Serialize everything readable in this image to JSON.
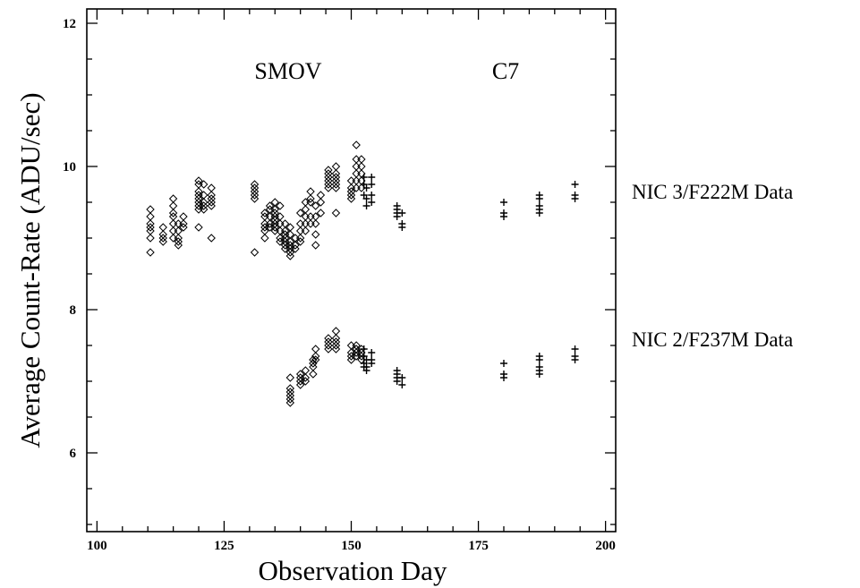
{
  "chart_data": {
    "type": "scatter",
    "xlabel": "Observation Day",
    "ylabel": "Average Count-Rate (ADU/sec)",
    "xlim": [
      98,
      202
    ],
    "ylim": [
      4.9,
      12.2
    ],
    "x_ticks": [
      100,
      125,
      150,
      175,
      200
    ],
    "y_ticks": [
      6,
      8,
      10,
      12
    ],
    "annotations": [
      "SMOV",
      "C7"
    ],
    "series": [
      {
        "name": "NIC 3/F222M Data",
        "groups": [
          {
            "marker": "diamond",
            "points": [
              [
                110.5,
                9.4
              ],
              [
                110.5,
                9.3
              ],
              [
                110.5,
                9.2
              ],
              [
                110.5,
                9.15
              ],
              [
                110.5,
                9.1
              ],
              [
                110.5,
                9.0
              ],
              [
                110.5,
                8.8
              ],
              [
                113,
                9.15
              ],
              [
                113,
                9.05
              ],
              [
                113,
                9.0
              ],
              [
                113,
                8.95
              ],
              [
                115,
                9.55
              ],
              [
                115,
                9.45
              ],
              [
                115,
                9.35
              ],
              [
                115,
                9.3
              ],
              [
                115,
                9.2
              ],
              [
                115,
                9.1
              ],
              [
                115,
                9.0
              ],
              [
                116,
                9.2
              ],
              [
                116,
                9.1
              ],
              [
                116,
                9.0
              ],
              [
                116,
                8.95
              ],
              [
                116,
                8.9
              ],
              [
                117,
                9.3
              ],
              [
                117,
                9.2
              ],
              [
                117,
                9.15
              ],
              [
                120,
                9.8
              ],
              [
                120,
                9.75
              ],
              [
                120,
                9.65
              ],
              [
                120,
                9.6
              ],
              [
                120,
                9.55
              ],
              [
                120,
                9.5
              ],
              [
                120,
                9.45
              ],
              [
                120,
                9.4
              ],
              [
                120,
                9.15
              ],
              [
                121,
                9.75
              ],
              [
                121,
                9.6
              ],
              [
                121,
                9.5
              ],
              [
                121,
                9.45
              ],
              [
                121,
                9.4
              ],
              [
                122.5,
                9.7
              ],
              [
                122.5,
                9.6
              ],
              [
                122.5,
                9.55
              ],
              [
                122.5,
                9.5
              ],
              [
                122.5,
                9.45
              ],
              [
                122.5,
                9.0
              ],
              [
                131,
                9.75
              ],
              [
                131,
                9.7
              ],
              [
                131,
                9.65
              ],
              [
                131,
                9.6
              ],
              [
                131,
                9.55
              ],
              [
                131,
                8.8
              ],
              [
                133,
                9.35
              ],
              [
                133,
                9.3
              ],
              [
                133,
                9.2
              ],
              [
                133,
                9.15
              ],
              [
                133,
                9.1
              ],
              [
                133,
                9.0
              ],
              [
                134,
                9.45
              ],
              [
                134,
                9.4
              ],
              [
                134,
                9.3
              ],
              [
                134,
                9.2
              ],
              [
                134,
                9.15
              ],
              [
                135,
                9.5
              ],
              [
                135,
                9.4
              ],
              [
                135,
                9.35
              ],
              [
                135,
                9.3
              ],
              [
                135,
                9.25
              ],
              [
                135,
                9.2
              ],
              [
                135,
                9.15
              ],
              [
                135,
                9.1
              ],
              [
                136,
                9.45
              ],
              [
                136,
                9.3
              ],
              [
                136,
                9.2
              ],
              [
                136,
                9.1
              ],
              [
                136,
                9.0
              ],
              [
                136,
                8.95
              ],
              [
                137,
                9.2
              ],
              [
                137,
                9.1
              ],
              [
                137,
                9.05
              ],
              [
                137,
                9.0
              ],
              [
                137,
                8.95
              ],
              [
                137,
                8.9
              ],
              [
                137,
                8.85
              ],
              [
                138,
                9.15
              ],
              [
                138,
                9.05
              ],
              [
                138,
                8.95
              ],
              [
                138,
                8.9
              ],
              [
                138,
                8.85
              ],
              [
                138,
                8.8
              ],
              [
                138,
                8.75
              ],
              [
                139,
                9.0
              ],
              [
                139,
                8.9
              ],
              [
                139,
                8.85
              ],
              [
                140,
                9.35
              ],
              [
                140,
                9.2
              ],
              [
                140,
                9.1
              ],
              [
                140,
                9.0
              ],
              [
                140,
                8.95
              ],
              [
                141,
                9.5
              ],
              [
                141,
                9.4
              ],
              [
                141,
                9.3
              ],
              [
                141,
                9.2
              ],
              [
                141,
                9.1
              ],
              [
                142,
                9.65
              ],
              [
                142,
                9.55
              ],
              [
                142,
                9.5
              ],
              [
                142,
                9.3
              ],
              [
                142,
                9.2
              ],
              [
                143,
                9.45
              ],
              [
                143,
                9.3
              ],
              [
                143,
                9.2
              ],
              [
                143,
                9.05
              ],
              [
                143,
                8.9
              ],
              [
                144,
                9.6
              ],
              [
                144,
                9.5
              ],
              [
                144,
                9.35
              ],
              [
                145.5,
                9.95
              ],
              [
                145.5,
                9.9
              ],
              [
                145.5,
                9.85
              ],
              [
                145.5,
                9.8
              ],
              [
                145.5,
                9.75
              ],
              [
                145.5,
                9.7
              ],
              [
                147,
                10.0
              ],
              [
                147,
                9.9
              ],
              [
                147,
                9.85
              ],
              [
                147,
                9.8
              ],
              [
                147,
                9.75
              ],
              [
                147,
                9.7
              ],
              [
                147,
                9.35
              ],
              [
                150,
                9.8
              ],
              [
                150,
                9.7
              ],
              [
                150,
                9.65
              ],
              [
                150,
                9.6
              ],
              [
                150,
                9.55
              ],
              [
                151,
                10.3
              ],
              [
                151,
                10.1
              ],
              [
                151,
                10.0
              ],
              [
                151,
                9.9
              ],
              [
                151,
                9.8
              ],
              [
                151,
                9.7
              ],
              [
                152,
                10.1
              ],
              [
                152,
                10.0
              ],
              [
                152,
                9.9
              ],
              [
                152,
                9.8
              ],
              [
                152,
                9.7
              ]
            ]
          },
          {
            "marker": "plus",
            "points": [
              [
                152.5,
                9.85
              ],
              [
                152.5,
                9.75
              ],
              [
                152.5,
                9.6
              ],
              [
                153,
                9.7
              ],
              [
                153,
                9.55
              ],
              [
                153,
                9.45
              ],
              [
                154,
                9.85
              ],
              [
                154,
                9.75
              ],
              [
                154,
                9.6
              ],
              [
                154,
                9.5
              ],
              [
                159,
                9.45
              ],
              [
                159,
                9.4
              ],
              [
                159,
                9.35
              ],
              [
                159,
                9.3
              ],
              [
                160,
                9.35
              ],
              [
                160,
                9.2
              ],
              [
                160,
                9.15
              ],
              [
                180,
                9.5
              ],
              [
                180,
                9.35
              ],
              [
                180,
                9.3
              ],
              [
                187,
                9.6
              ],
              [
                187,
                9.55
              ],
              [
                187,
                9.45
              ],
              [
                187,
                9.4
              ],
              [
                187,
                9.35
              ],
              [
                194,
                9.75
              ],
              [
                194,
                9.6
              ],
              [
                194,
                9.55
              ]
            ]
          }
        ]
      },
      {
        "name": "NIC 2/F237M Data",
        "groups": [
          {
            "marker": "diamond",
            "points": [
              [
                138,
                7.05
              ],
              [
                138,
                6.9
              ],
              [
                138,
                6.85
              ],
              [
                138,
                6.8
              ],
              [
                138,
                6.75
              ],
              [
                138,
                6.7
              ],
              [
                140,
                7.1
              ],
              [
                140,
                7.05
              ],
              [
                140,
                7.0
              ],
              [
                140,
                6.95
              ],
              [
                141,
                7.15
              ],
              [
                141,
                7.05
              ],
              [
                141,
                7.0
              ],
              [
                142.5,
                7.3
              ],
              [
                142.5,
                7.25
              ],
              [
                142.5,
                7.2
              ],
              [
                142.5,
                7.1
              ],
              [
                143,
                7.45
              ],
              [
                143,
                7.35
              ],
              [
                143,
                7.3
              ],
              [
                145.5,
                7.6
              ],
              [
                145.5,
                7.55
              ],
              [
                145.5,
                7.5
              ],
              [
                145.5,
                7.45
              ],
              [
                147,
                7.7
              ],
              [
                147,
                7.6
              ],
              [
                147,
                7.55
              ],
              [
                147,
                7.5
              ],
              [
                147,
                7.45
              ],
              [
                150,
                7.5
              ],
              [
                150,
                7.4
              ],
              [
                150,
                7.35
              ],
              [
                150,
                7.3
              ],
              [
                151,
                7.5
              ],
              [
                151,
                7.45
              ],
              [
                151,
                7.4
              ],
              [
                151,
                7.35
              ],
              [
                152,
                7.45
              ],
              [
                152,
                7.4
              ],
              [
                152,
                7.35
              ],
              [
                152,
                7.3
              ]
            ]
          },
          {
            "marker": "plus",
            "points": [
              [
                152.5,
                7.45
              ],
              [
                152.5,
                7.35
              ],
              [
                152.5,
                7.25
              ],
              [
                152.5,
                7.2
              ],
              [
                153,
                7.3
              ],
              [
                153,
                7.2
              ],
              [
                153,
                7.15
              ],
              [
                154,
                7.4
              ],
              [
                154,
                7.3
              ],
              [
                154,
                7.25
              ],
              [
                159,
                7.15
              ],
              [
                159,
                7.1
              ],
              [
                159,
                7.05
              ],
              [
                159,
                7.0
              ],
              [
                160,
                7.05
              ],
              [
                160,
                6.95
              ],
              [
                180,
                7.25
              ],
              [
                180,
                7.1
              ],
              [
                180,
                7.05
              ],
              [
                187,
                7.35
              ],
              [
                187,
                7.3
              ],
              [
                187,
                7.2
              ],
              [
                187,
                7.15
              ],
              [
                187,
                7.1
              ],
              [
                194,
                7.45
              ],
              [
                194,
                7.35
              ],
              [
                194,
                7.3
              ]
            ]
          }
        ]
      }
    ]
  }
}
